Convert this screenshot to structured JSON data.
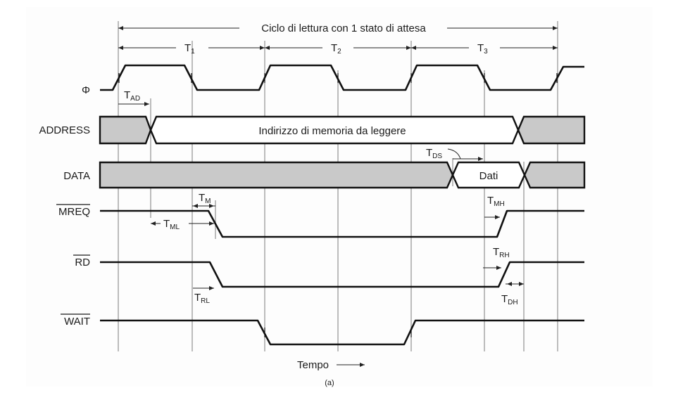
{
  "title": "Ciclo di lettura con 1 stato di attesa",
  "states": [
    "T",
    "T",
    "T"
  ],
  "state_subs": [
    "1",
    "2",
    "3"
  ],
  "signals": {
    "clock": "Φ",
    "address": "ADDRESS",
    "data": "DATA",
    "mreq": "MREQ",
    "rd": "RD",
    "wait": "WAIT"
  },
  "address_text": "Indirizzo di memoria da leggere",
  "data_text": "Dati",
  "timings": {
    "tad": {
      "main": "T",
      "sub": "AD"
    },
    "tds": {
      "main": "T",
      "sub": "DS"
    },
    "tm": {
      "main": "T",
      "sub": "M"
    },
    "tml": {
      "main": "T",
      "sub": "ML"
    },
    "tmh": {
      "main": "T",
      "sub": "MH"
    },
    "trh": {
      "main": "T",
      "sub": "RH"
    },
    "trl": {
      "main": "T",
      "sub": "RL"
    },
    "tdh": {
      "main": "T",
      "sub": "DH"
    }
  },
  "time_label": "Tempo",
  "caption": "(a)"
}
